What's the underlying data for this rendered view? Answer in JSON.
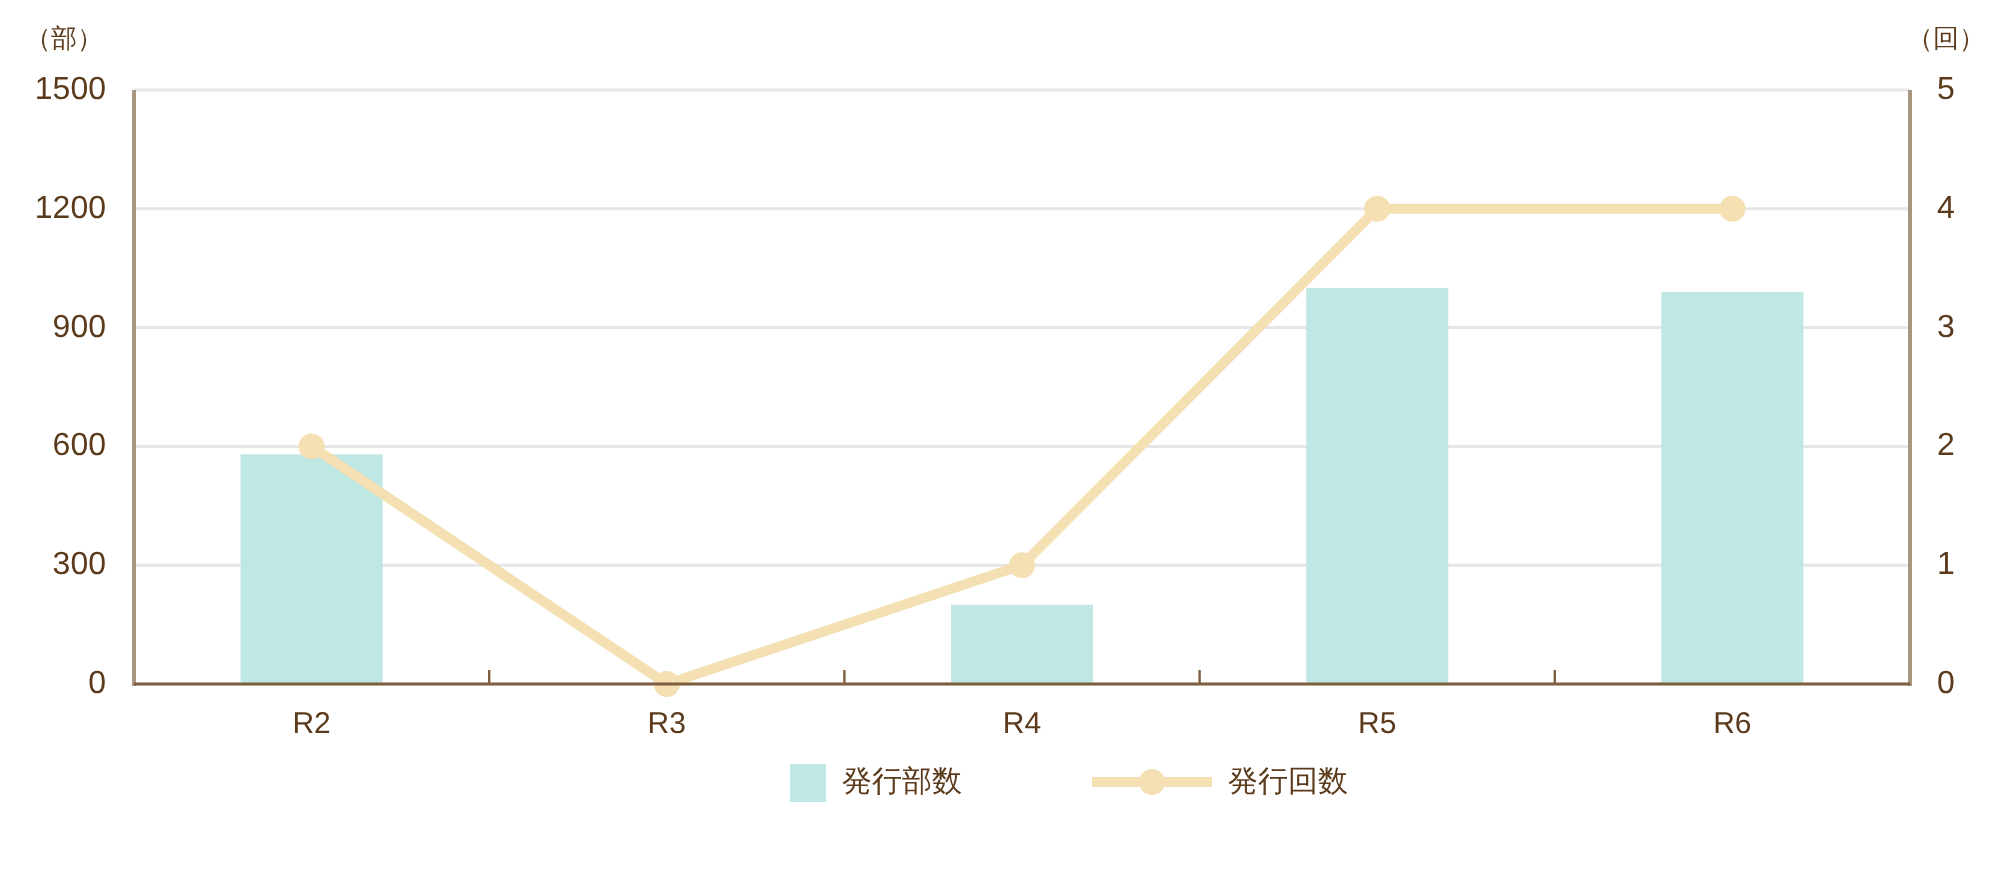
{
  "chart_data": {
    "type": "bar",
    "categories": [
      "R2",
      "R3",
      "R4",
      "R5",
      "R6"
    ],
    "series": [
      {
        "name": "発行部数",
        "color": "#bfe7e4",
        "values": [
          580,
          0,
          200,
          1000,
          990
        ]
      },
      {
        "name": "発行回数",
        "type": "line",
        "axis": "y2",
        "color": "#f4e0b3",
        "values": [
          2,
          0,
          1,
          4,
          4
        ]
      }
    ],
    "ylabel": "（部）",
    "y2label": "（回）",
    "ylim": [
      0,
      1500
    ],
    "yticks": [
      0,
      300,
      600,
      900,
      1200,
      1500
    ],
    "y2lim": [
      0,
      5
    ],
    "y2ticks": [
      0,
      1,
      2,
      3,
      4,
      5
    ],
    "grid": "y",
    "legend": "bottom",
    "marker": "circle",
    "line_style": "solid"
  }
}
